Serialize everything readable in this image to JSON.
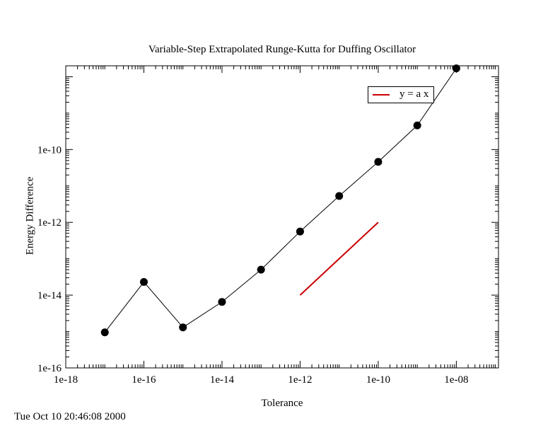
{
  "chart_data": {
    "type": "scatter",
    "title": "Variable-Step Extrapolated Runge-Kutta for Duffing Oscillator",
    "xlabel": "Tolerance",
    "ylabel": "Energy Difference",
    "xscale": "log",
    "yscale": "log",
    "xlim": [
      1e-18,
      1.2e-07
    ],
    "ylim": [
      1e-16,
      2e-08
    ],
    "x_ticks": [
      "1e-18",
      "1e-16",
      "1e-14",
      "1e-12",
      "1e-10",
      "1e-08"
    ],
    "y_ticks": [
      "1e-16",
      "1e-14",
      "1e-12",
      "1e-10"
    ],
    "grid": false,
    "legend_position": "top-right",
    "series": [
      {
        "color": "#000000",
        "marker": "circle",
        "line": true,
        "x": [
          1e-17,
          1e-16,
          1e-15,
          1e-14,
          1e-13,
          1e-12,
          1e-11,
          1e-10,
          1e-09,
          1e-08
        ],
        "y": [
          9.5e-16,
          2.3e-14,
          1.3e-15,
          6.5e-15,
          5e-14,
          5.6e-13,
          5.3e-12,
          4.6e-11,
          4.6e-10,
          1.7e-08
        ]
      },
      {
        "name": "y = a x",
        "color": "#cc0000",
        "marker": "none",
        "line": true,
        "x": [
          1e-12,
          1e-10
        ],
        "y": [
          1e-14,
          1e-12
        ]
      }
    ]
  },
  "timestamp": "Tue Oct 10 20:46:08 2000"
}
